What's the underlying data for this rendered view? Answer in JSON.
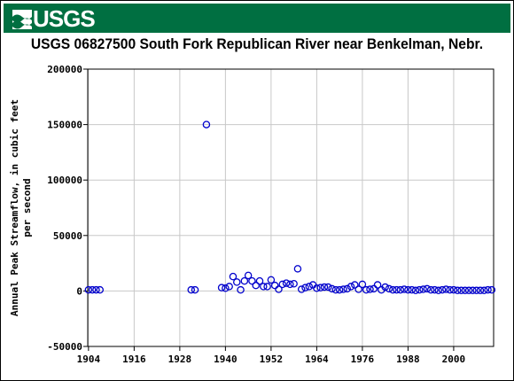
{
  "header": {
    "brand": "USGS",
    "brand_color": "#006f41",
    "logo_icon": "usgs-wave-icon"
  },
  "chart_data": {
    "type": "scatter",
    "title": "USGS 06827500 South Fork Republican River near Benkelman, Nebr.",
    "xlabel": "",
    "ylabel": "Annual Peak Streamflow, in cubic feet per second",
    "ylabel_lines": [
      "Annual Peak Streamflow, in cubic feet",
      "per second"
    ],
    "xlim": [
      1903.8,
      2010.5
    ],
    "ylim": [
      -50000,
      200000
    ],
    "x_ticks": [
      1904,
      1916,
      1928,
      1940,
      1952,
      1964,
      1976,
      1988,
      2000
    ],
    "y_ticks": [
      -50000,
      0,
      50000,
      100000,
      150000,
      200000
    ],
    "grid": true,
    "marker": "open-circle",
    "marker_color": "#0000cc",
    "points": [
      [
        1904,
        1000
      ],
      [
        1905,
        1000
      ],
      [
        1906,
        1000
      ],
      [
        1907,
        1000
      ],
      [
        1931,
        1000
      ],
      [
        1932,
        1000
      ],
      [
        1935,
        150000
      ],
      [
        1939,
        3000
      ],
      [
        1940,
        2500
      ],
      [
        1941,
        4000
      ],
      [
        1942,
        13000
      ],
      [
        1943,
        8000
      ],
      [
        1944,
        1000
      ],
      [
        1945,
        9000
      ],
      [
        1946,
        14000
      ],
      [
        1947,
        9000
      ],
      [
        1948,
        5000
      ],
      [
        1949,
        9000
      ],
      [
        1950,
        4000
      ],
      [
        1951,
        4000
      ],
      [
        1952,
        10000
      ],
      [
        1953,
        5000
      ],
      [
        1954,
        1500
      ],
      [
        1955,
        6000
      ],
      [
        1956,
        7000
      ],
      [
        1957,
        6000
      ],
      [
        1958,
        6500
      ],
      [
        1959,
        20000
      ],
      [
        1960,
        1500
      ],
      [
        1961,
        3000
      ],
      [
        1962,
        4000
      ],
      [
        1963,
        5500
      ],
      [
        1964,
        2500
      ],
      [
        1965,
        3000
      ],
      [
        1966,
        3500
      ],
      [
        1967,
        3500
      ],
      [
        1968,
        2000
      ],
      [
        1969,
        1000
      ],
      [
        1970,
        1000
      ],
      [
        1971,
        1500
      ],
      [
        1972,
        2000
      ],
      [
        1973,
        4000
      ],
      [
        1974,
        5500
      ],
      [
        1975,
        1500
      ],
      [
        1976,
        6000
      ],
      [
        1977,
        1000
      ],
      [
        1978,
        1500
      ],
      [
        1979,
        2000
      ],
      [
        1980,
        5500
      ],
      [
        1981,
        1000
      ],
      [
        1982,
        3500
      ],
      [
        1983,
        2000
      ],
      [
        1984,
        1000
      ],
      [
        1985,
        1000
      ],
      [
        1986,
        1000
      ],
      [
        1987,
        1500
      ],
      [
        1988,
        1000
      ],
      [
        1989,
        1000
      ],
      [
        1990,
        500
      ],
      [
        1991,
        1000
      ],
      [
        1992,
        1500
      ],
      [
        1993,
        2000
      ],
      [
        1994,
        1000
      ],
      [
        1995,
        1000
      ],
      [
        1996,
        500
      ],
      [
        1997,
        1000
      ],
      [
        1998,
        1500
      ],
      [
        1999,
        1000
      ],
      [
        2000,
        1000
      ],
      [
        2001,
        500
      ],
      [
        2002,
        500
      ],
      [
        2003,
        500
      ],
      [
        2004,
        500
      ],
      [
        2005,
        500
      ],
      [
        2006,
        500
      ],
      [
        2007,
        500
      ],
      [
        2008,
        500
      ],
      [
        2009,
        1000
      ],
      [
        2010,
        1000
      ]
    ]
  }
}
